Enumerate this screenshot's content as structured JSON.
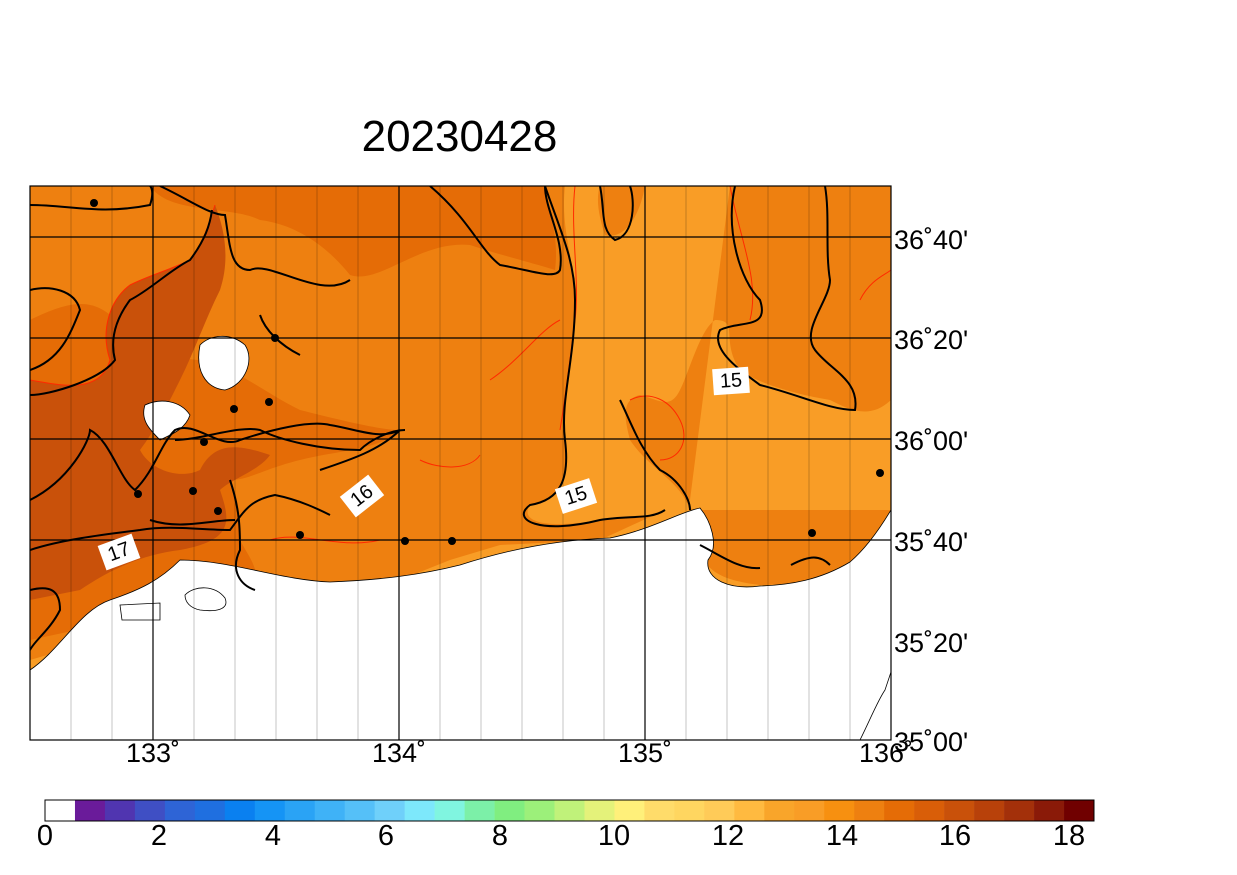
{
  "title": "20230428",
  "map": {
    "lat_labels": [
      "36˚40'",
      "36˚20'",
      "36˚00'",
      "35˚40'",
      "35˚20'",
      "35˚00'"
    ],
    "lon_labels": [
      "133˚",
      "134˚",
      "135˚",
      "136˚"
    ],
    "contour_labels": [
      "15",
      "15",
      "16",
      "17"
    ],
    "stations_count": 14,
    "colors": {
      "land_16_17": "#e56c06",
      "land_14_15": "#f99d26",
      "land_17_18": "#c9510a",
      "land_15_16": "#ee8010",
      "sea": "#ffffff",
      "contour_major": "#000000",
      "contour_minor": "#ff2a00"
    }
  },
  "colorbar": {
    "tick_labels": [
      "0",
      "2",
      "4",
      "6",
      "8",
      "10",
      "12",
      "14",
      "16",
      "18"
    ],
    "colors": [
      "#ffffff",
      "#6a1b9a",
      "#5035b0",
      "#3f4fc4",
      "#2e64d6",
      "#1f6fe0",
      "#0a80f0",
      "#1594f5",
      "#2aa3f5",
      "#3fb2f7",
      "#55c0f8",
      "#6fd0fa",
      "#7de8fb",
      "#80f5e0",
      "#7cf0a8",
      "#80ee80",
      "#9cf07a",
      "#c0f27a",
      "#e4f27a",
      "#fff07a",
      "#ffdc6a",
      "#ffd660",
      "#ffcb58",
      "#ffba40",
      "#f9a52a",
      "#f99d26",
      "#f79010",
      "#ee8010",
      "#e56c06",
      "#d95e08",
      "#c9510a",
      "#b8410a",
      "#a3300a",
      "#8a1a08",
      "#700000"
    ]
  }
}
